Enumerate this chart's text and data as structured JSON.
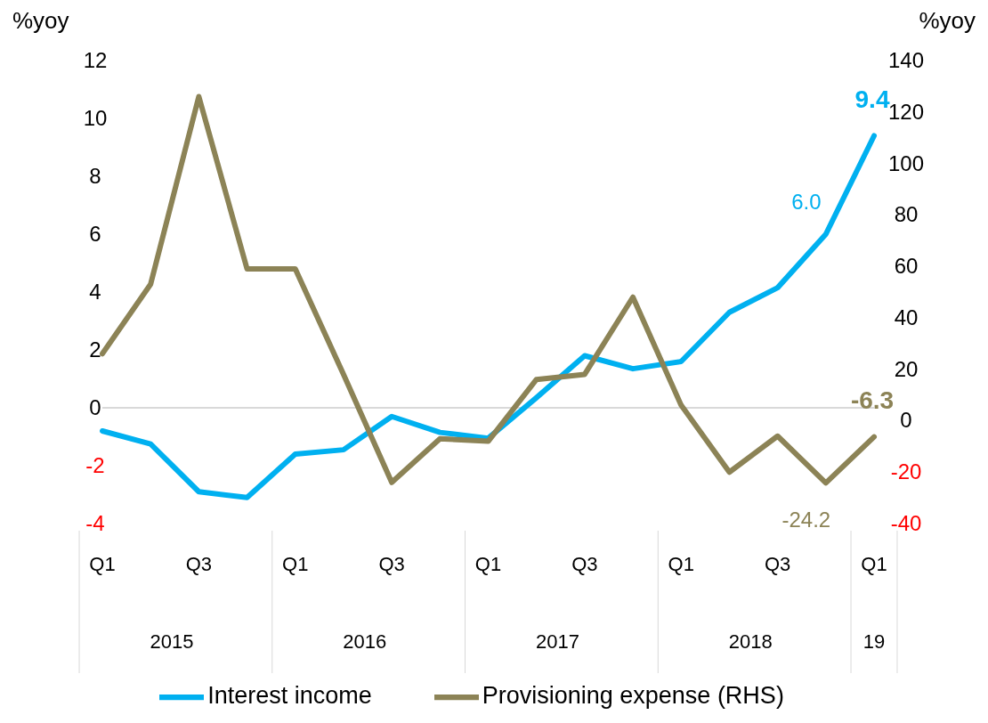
{
  "chart_data": {
    "type": "line",
    "categories": [
      "Q1",
      null,
      "Q3",
      null,
      "Q1",
      null,
      "Q3",
      null,
      "Q1",
      null,
      "Q3",
      null,
      "Q1",
      null,
      "Q3",
      null,
      "Q1"
    ],
    "annotations": [
      "2015",
      "2016",
      "2017",
      "2018",
      "19"
    ],
    "ylabel": "%yoy",
    "y2label": "%yoy",
    "series": [
      {
        "name": "Interest income",
        "color": "#00b0f0",
        "values": [
          -0.8,
          -1.25,
          -2.9,
          -3.1,
          -1.6,
          -1.45,
          -0.3,
          -0.85,
          -1.05,
          0.35,
          1.8,
          1.35,
          1.6,
          3.3,
          4.15,
          6.0,
          9.4
        ],
        "value_labels": [
          null,
          null,
          null,
          null,
          null,
          null,
          null,
          null,
          null,
          null,
          null,
          null,
          null,
          null,
          null,
          "6.0",
          "9.4"
        ]
      },
      {
        "name": "Provisioning expense (RHS)",
        "color": "#8c8356",
        "axis": "y2",
        "values": [
          26,
          53,
          126,
          59,
          59,
          18,
          -24,
          -7,
          -8,
          16,
          18,
          48,
          6,
          -20,
          -6,
          -24.2,
          -6.3
        ],
        "value_labels": [
          null,
          null,
          null,
          null,
          null,
          null,
          null,
          null,
          null,
          null,
          null,
          null,
          null,
          null,
          null,
          "-24.2",
          "-6.3"
        ]
      }
    ],
    "ylim": [
      -4,
      12
    ],
    "yticks": [
      -4,
      -2,
      0,
      2,
      4,
      6,
      8,
      10,
      12
    ],
    "y2lim": [
      -40,
      140
    ],
    "y2ticks": [
      -40,
      -20,
      0,
      20,
      40,
      60,
      80,
      100,
      120,
      140
    ],
    "ref_lines": [
      {
        "axis": "y",
        "value": 0,
        "color": "#d9d9d9"
      }
    ],
    "legend": "bottom",
    "marker": "none",
    "line_style": "solid"
  }
}
